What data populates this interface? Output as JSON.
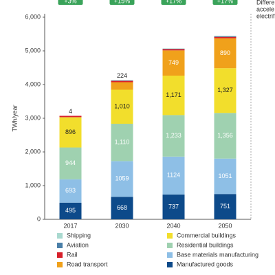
{
  "chart_data": {
    "type": "bar",
    "stacked": true,
    "y_label": "TWh/year",
    "categories": [
      "2017",
      "2030",
      "2040",
      "2050"
    ],
    "changes": [
      "+3%",
      "+15%",
      "+17%",
      "+17%"
    ],
    "side_note": [
      "Differen",
      "accele",
      "electrifi"
    ],
    "ylim": [
      0,
      6000
    ],
    "yticks": [
      0,
      {
        "value": 1000,
        "label": "1,000"
      },
      {
        "value": 2000,
        "label": "2,000"
      },
      {
        "value": 3000,
        "label": "3,000"
      },
      {
        "value": 4000,
        "label": "4,000"
      },
      {
        "value": 5000,
        "label": "5,000"
      },
      {
        "value": 6000,
        "label": "6,000"
      }
    ],
    "series": [
      {
        "name": "Shipping",
        "color": "#a9d9cf",
        "values": [
          0,
          10,
          10,
          15
        ]
      },
      {
        "name": "Aviation",
        "color": "#4a7fa8",
        "values": [
          0,
          10,
          10,
          20
        ]
      },
      {
        "name": "Rail",
        "color": "#d7202b",
        "values": [
          40,
          40,
          40,
          40
        ]
      },
      {
        "name": "Road transport",
        "color": "#f0a11b",
        "values": [
          4,
          224,
          749,
          890
        ],
        "value_labels": [
          "4",
          "224",
          "749",
          "890"
        ]
      },
      {
        "name": "Commercial buildings",
        "color": "#f2de2c",
        "values": [
          896,
          1010,
          1171,
          1327
        ],
        "value_labels": [
          "896",
          "1,010",
          "1,171",
          "1,327"
        ]
      },
      {
        "name": "Residential buildings",
        "color": "#9fd1b0",
        "values": [
          944,
          1110,
          1233,
          1356
        ],
        "value_labels": [
          "944",
          "1,110",
          "1,233",
          "1,356"
        ]
      },
      {
        "name": "Base materials manufacturing",
        "color": "#8ebfe6",
        "values": [
          693,
          1059,
          1124,
          1051
        ],
        "value_labels": [
          "693",
          "1059",
          "1124",
          "1051"
        ]
      },
      {
        "name": "Manufactured goods",
        "color": "#0d4a8a",
        "values": [
          495,
          668,
          737,
          751
        ],
        "value_labels": [
          "495",
          "668",
          "737",
          "751"
        ]
      }
    ]
  }
}
